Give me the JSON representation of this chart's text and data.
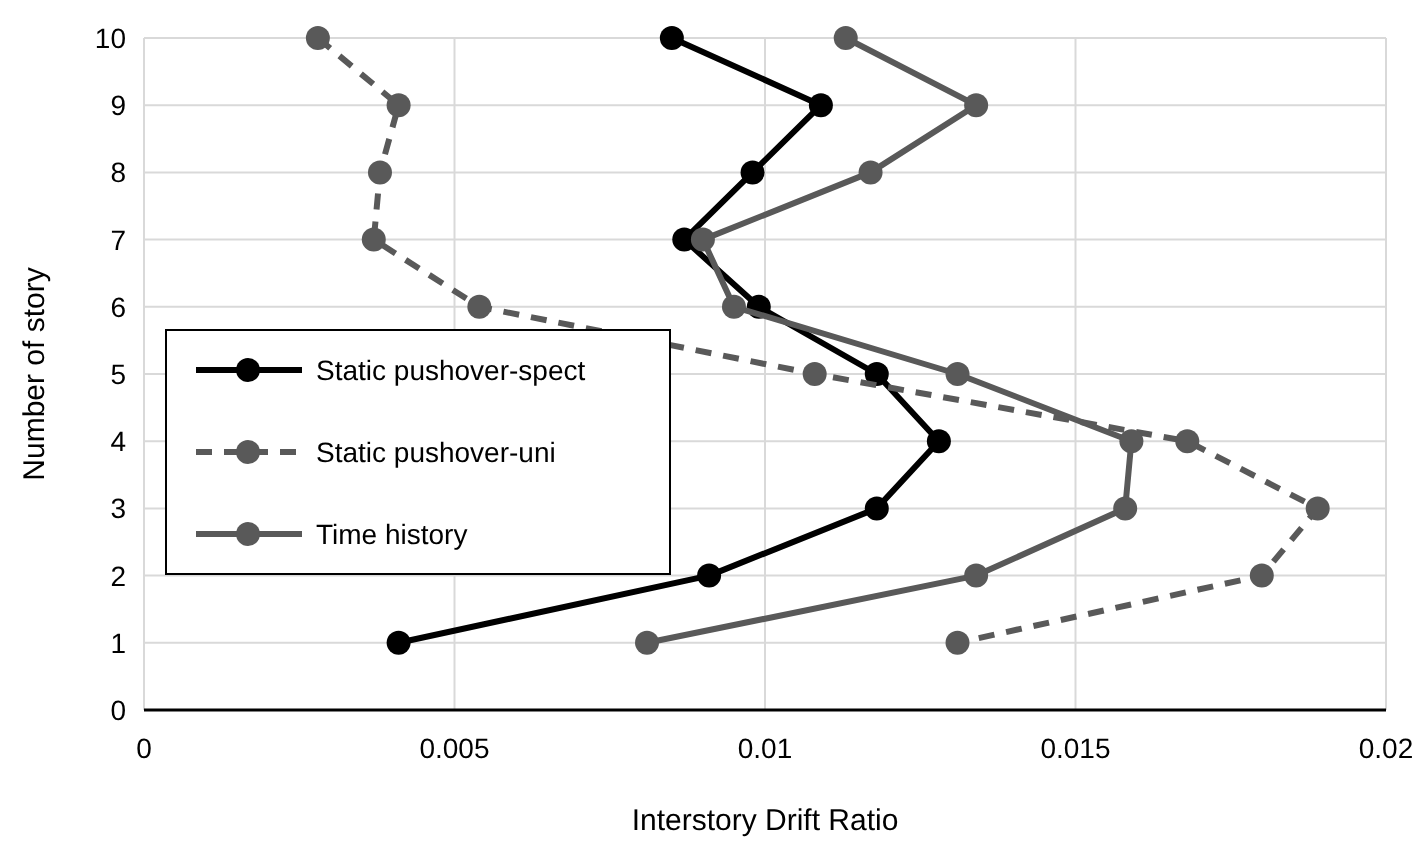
{
  "chart_data": {
    "type": "line",
    "xlabel": "Interstory Drift Ratio",
    "ylabel": "Number of story",
    "xlim": [
      0,
      0.02
    ],
    "xticks": [
      0,
      0.005,
      0.01,
      0.015,
      0.02
    ],
    "ylim": [
      0,
      10
    ],
    "yticks": [
      0,
      1,
      2,
      3,
      4,
      5,
      6,
      7,
      8,
      9,
      10
    ],
    "grid": true,
    "legend": "left",
    "marker": "circle",
    "series": [
      {
        "name": "Static pushover-spect",
        "color": "#000000",
        "line_style": "solid",
        "x": [
          0.0085,
          0.0109,
          0.0098,
          0.0087,
          0.0099,
          0.0118,
          0.0128,
          0.0118,
          0.0091,
          0.0041
        ],
        "values": [
          10,
          9,
          8,
          7,
          6,
          5,
          4,
          3,
          2,
          1
        ]
      },
      {
        "name": "Static pushover-uni",
        "color": "#595959",
        "line_style": "dashed",
        "x": [
          0.0028,
          0.0041,
          0.0038,
          0.0037,
          0.0054,
          0.0108,
          0.0168,
          0.0189,
          0.018,
          0.0131
        ],
        "values": [
          10,
          9,
          8,
          7,
          6,
          5,
          4,
          3,
          2,
          1
        ]
      },
      {
        "name": "Time history",
        "color": "#595959",
        "line_style": "solid",
        "x": [
          0.0113,
          0.0134,
          0.0117,
          0.009,
          0.0095,
          0.0131,
          0.0159,
          0.0158,
          0.0134,
          0.0081
        ],
        "values": [
          10,
          9,
          8,
          7,
          6,
          5,
          4,
          3,
          2,
          1
        ]
      }
    ]
  }
}
